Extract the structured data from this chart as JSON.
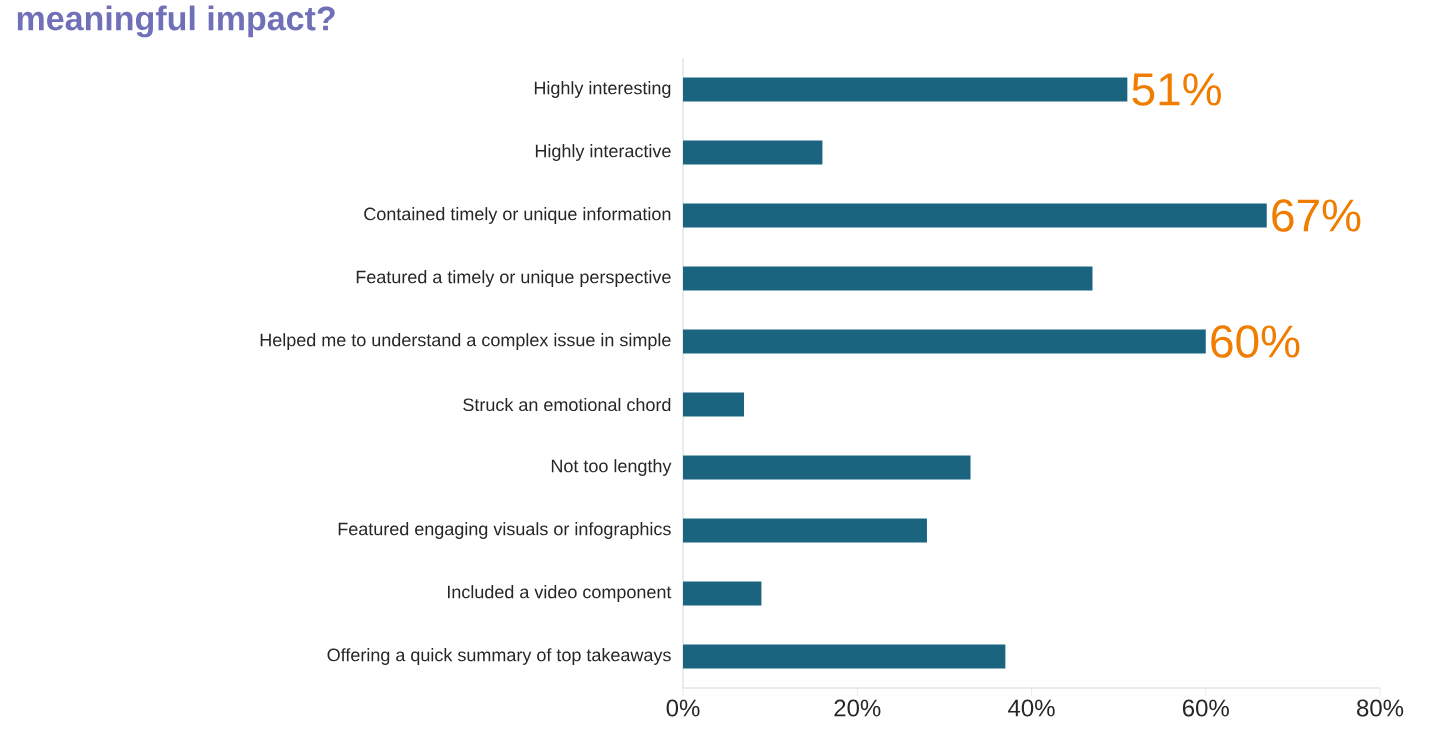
{
  "chart_data": {
    "type": "bar",
    "orientation": "horizontal",
    "title": "meaningful impact?",
    "categories": [
      "Highly interesting",
      "Highly interactive",
      "Contained timely or unique information",
      "Featured a timely or unique perspective",
      "Helped me to understand a complex issue in simple",
      "Struck an emotional chord",
      "Not too lengthy",
      "Featured engaging visuals or infographics",
      "Included a video component",
      "Offering a quick summary of top takeaways"
    ],
    "values": [
      51,
      16,
      67,
      47,
      60,
      7,
      33,
      28,
      9,
      37
    ],
    "value_labels": [
      "51%",
      null,
      "67%",
      null,
      "60%",
      null,
      null,
      null,
      null,
      null
    ],
    "color": "#1a6480",
    "xlim": [
      0,
      80
    ],
    "xticks": [
      {
        "value": 0,
        "label": "0%"
      },
      {
        "value": 20,
        "label": "20%"
      },
      {
        "value": 40,
        "label": "40%"
      },
      {
        "value": 60,
        "label": "60%"
      },
      {
        "value": 80,
        "label": "80%"
      }
    ],
    "grid": false
  }
}
